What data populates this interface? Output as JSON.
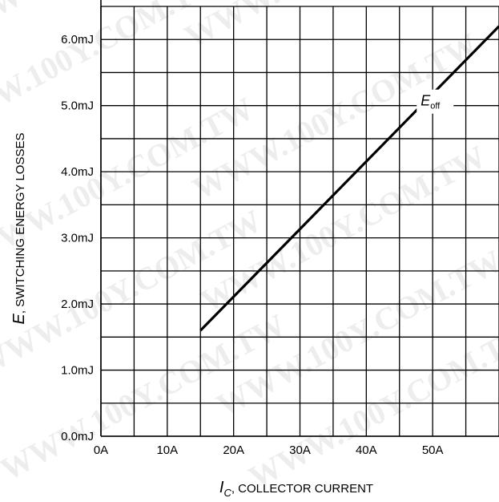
{
  "chart_data": {
    "type": "line",
    "xlabel_main": "I",
    "xlabel_sub": "C",
    "xlabel_rest": ", COLLECTOR CURRENT",
    "ylabel_main": "E",
    "ylabel_rest": ", SWITCHING ENERGY LOSSES",
    "x_ticks": [
      "0A",
      "10A",
      "20A",
      "30A",
      "40A",
      "50A"
    ],
    "y_ticks": [
      "0.0mJ",
      "1.0mJ",
      "2.0mJ",
      "3.0mJ",
      "4.0mJ",
      "5.0mJ",
      "6.0mJ"
    ],
    "xlim": [
      0,
      60
    ],
    "ylim": [
      0,
      6.5
    ],
    "grid": true,
    "series": [
      {
        "name_main": "E",
        "name_sub": "off",
        "x": [
          15,
          60
        ],
        "y": [
          1.6,
          6.2
        ]
      }
    ]
  },
  "watermark": "WWW.100Y.COM.TW"
}
